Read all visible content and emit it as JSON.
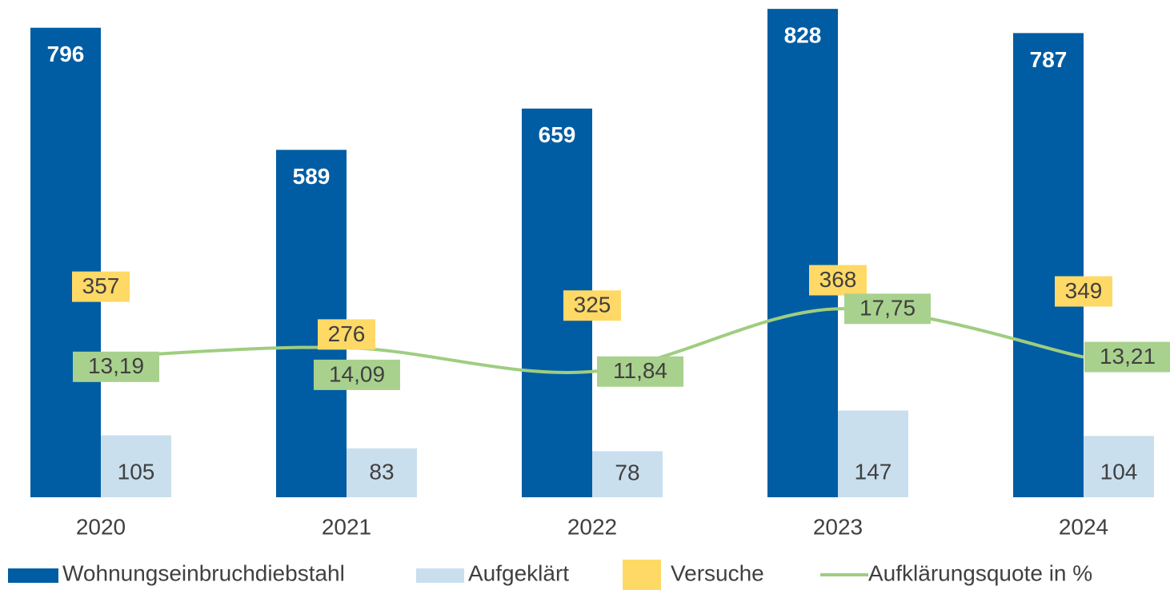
{
  "chart_data": {
    "type": "bar",
    "categories": [
      "2020",
      "2021",
      "2022",
      "2023",
      "2024"
    ],
    "ylim": [
      0,
      900
    ],
    "y2lim": [
      0,
      50
    ],
    "series": [
      {
        "name": "Wohnungseinbruchdiebstahl",
        "color": "#005da3",
        "values": [
          796,
          589,
          659,
          828,
          787
        ]
      },
      {
        "name": "Aufgeklärt",
        "color": "#c9dfee",
        "values": [
          105,
          83,
          78,
          147,
          104
        ]
      },
      {
        "name": "Versuche",
        "color": "#ffd966",
        "values": [
          357,
          276,
          325,
          368,
          349
        ]
      },
      {
        "name": "Aufklärungsquote in %",
        "color": "#9fcd80",
        "axis": "y2",
        "type": "line",
        "values": [
          13.19,
          14.09,
          11.84,
          17.75,
          13.21
        ],
        "value_labels": [
          "13,19",
          "14,09",
          "11,84",
          "17,75",
          "13,21"
        ]
      }
    ],
    "legend": "bottom"
  }
}
